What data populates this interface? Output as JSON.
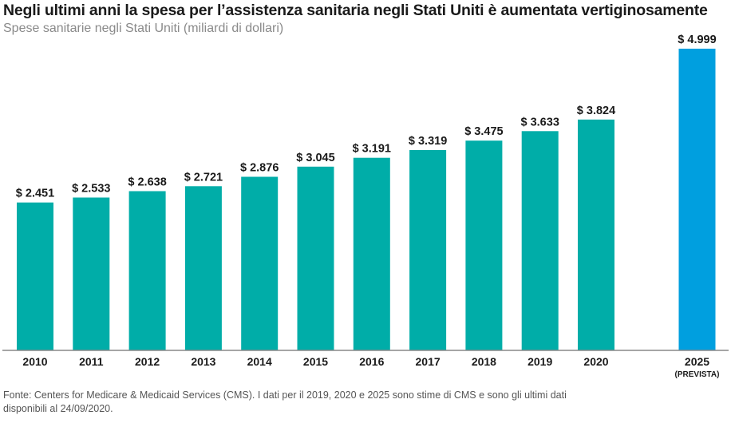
{
  "title": "Negli ultimi anni la spesa per l’assistenza sanitaria negli Stati Uniti è aumentata vertiginosamente",
  "subtitle": "Spese sanitarie negli Stati Uniti (miliardi di dollari)",
  "source_line1": "Fonte: Centers for Medicare & Medicaid Services (CMS). I dati per il 2019, 2020 e 2025 sono stime di CMS e sono gli ultimi dati",
  "source_line2": "disponibili al 24/09/2020.",
  "colors": {
    "actual": "#00ADA8",
    "projected": "#009FDF",
    "axis": "#888888",
    "text": "#1a1a1a"
  },
  "chart_data": {
    "type": "bar",
    "title": "Negli ultimi anni la spesa per l’assistenza sanitaria negli Stati Uniti è aumentata vertiginosamente",
    "ylabel": "Spese sanitarie negli Stati Uniti (miliardi di dollari)",
    "xlabel": "",
    "categories": [
      "2010",
      "2011",
      "2012",
      "2013",
      "2014",
      "2015",
      "2016",
      "2017",
      "2018",
      "2019",
      "2020",
      "2025"
    ],
    "category_notes": [
      "",
      "",
      "",
      "",
      "",
      "",
      "",
      "",
      "",
      "",
      "",
      "(PREVISTA)"
    ],
    "values": [
      2451,
      2533,
      2638,
      2721,
      2876,
      3045,
      3191,
      3319,
      3475,
      3633,
      3824,
      4999
    ],
    "labels": [
      "$ 2.451",
      "$ 2.533",
      "$ 2.638",
      "$ 2.721",
      "$ 2.876",
      "$ 3.045",
      "$ 3.191",
      "$ 3.319",
      "$ 3.475",
      "$ 3.633",
      "$ 3.824",
      "$ 4.999"
    ],
    "projected": [
      false,
      false,
      false,
      false,
      false,
      false,
      false,
      false,
      false,
      false,
      false,
      true
    ],
    "ylim": [
      0,
      5000
    ],
    "grid": false,
    "legend": "none"
  }
}
